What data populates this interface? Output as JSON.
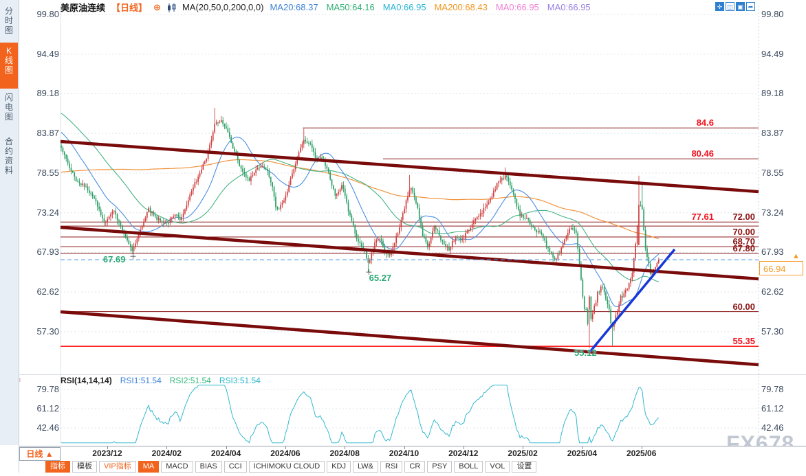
{
  "header": {
    "symbol": "美原油连续",
    "period_tag": "【日线】",
    "plus_icon": "⊕",
    "ma_settings": "MA(20,50,0,200,0,0)",
    "ma_values": [
      {
        "label": "MA20:68.37",
        "color": "#3d82d8"
      },
      {
        "label": "MA50:64.16",
        "color": "#2fae74"
      },
      {
        "label": "MA0:66.95",
        "color": "#29b3d4"
      },
      {
        "label": "MA200:68.43",
        "color": "#f0961e"
      },
      {
        "label": "MA0:66.95",
        "color": "#ef7fd4"
      },
      {
        "label": "MA0:66.95",
        "color": "#9a7fe0"
      }
    ],
    "icons": [
      "pan-crosshair-icon",
      "zoom-scale-icon",
      "kline-scale-icon",
      "exit-right-icon"
    ],
    "icon_glyphs": [
      "✛",
      "◫",
      "▣",
      "➦"
    ]
  },
  "sidebar": {
    "tabs": [
      {
        "label": "分时图",
        "active": false
      },
      {
        "label": "K线图",
        "active": true
      },
      {
        "label": "闪电图",
        "active": false
      },
      {
        "label": "合约资料",
        "active": false
      }
    ]
  },
  "rsi_panel": {
    "title": "RSI(14,14,14)",
    "values": [
      {
        "label": "RSI1:51.54",
        "color": "#3d82d8"
      },
      {
        "label": "RSI2:51.54",
        "color": "#35b87c"
      },
      {
        "label": "RSI3:51.54",
        "color": "#2ab5c9"
      }
    ]
  },
  "xaxis": {
    "period_label": "日线 ▲",
    "dates": [
      "2023/12",
      "2024/02",
      "2024/04",
      "2024/06",
      "2024/08",
      "2024/10",
      "2024/12",
      "2025/02",
      "2025/04",
      "2025/06"
    ]
  },
  "toolbar": {
    "items": [
      {
        "label": "指标",
        "state": "on"
      },
      {
        "label": "模板",
        "state": ""
      },
      {
        "label": "VIP指标",
        "state": "vip"
      },
      {
        "label": "MA",
        "state": "on"
      },
      {
        "label": "MACD",
        "state": ""
      },
      {
        "label": "BIAS",
        "state": ""
      },
      {
        "label": "CCI",
        "state": ""
      },
      {
        "label": "ICHIMOKU CLOUD",
        "state": ""
      },
      {
        "label": "KDJ",
        "state": ""
      },
      {
        "label": "LW&",
        "state": ""
      },
      {
        "label": "RSI",
        "state": ""
      },
      {
        "label": "CR",
        "state": ""
      },
      {
        "label": "PSY",
        "state": ""
      },
      {
        "label": "BOLL",
        "state": ""
      },
      {
        "label": "VOL",
        "state": ""
      },
      {
        "label": "设置",
        "state": ""
      }
    ]
  },
  "watermark": "FX678",
  "chart_data": {
    "type": "candlestick",
    "title": "美原油连续 日线 (US Crude Oil Continuous, Daily)",
    "x_window": "2023/11 - 2025/07",
    "y_axis_ticks": [
      99.8,
      94.49,
      89.18,
      83.87,
      78.55,
      73.24,
      67.93,
      62.62,
      57.3
    ],
    "rsi_axis_ticks": [
      79.78,
      61.12,
      42.46
    ],
    "last_price": 66.94,
    "colors": {
      "up": "#d04040",
      "down": "#2d9e66",
      "ma20": "#4a8fe2",
      "ma50": "#46b383",
      "ma200": "#f0923c",
      "channel": "#7a0b0b",
      "level": "#8b1a1a",
      "alert_line": "#ff2222",
      "blue_trend": "#1638d8",
      "last_dash": "#4f9be8",
      "rsi_line": "#35b8cf",
      "grid": "#dfe3ec"
    },
    "close_path": [
      [
        0,
        82.0
      ],
      [
        0.012,
        79.5
      ],
      [
        0.024,
        77.2
      ],
      [
        0.037,
        76.8
      ],
      [
        0.051,
        74.5
      ],
      [
        0.063,
        72.0
      ],
      [
        0.076,
        73.5
      ],
      [
        0.089,
        70.8
      ],
      [
        0.103,
        68.2
      ],
      [
        0.115,
        71.0
      ],
      [
        0.125,
        73.8
      ],
      [
        0.138,
        72.5
      ],
      [
        0.152,
        71.8
      ],
      [
        0.166,
        73.0
      ],
      [
        0.171,
        72.2
      ],
      [
        0.185,
        75.5
      ],
      [
        0.199,
        78.5
      ],
      [
        0.211,
        81.0
      ],
      [
        0.221,
        85.0
      ],
      [
        0.231,
        85.5
      ],
      [
        0.24,
        84.0
      ],
      [
        0.248,
        81.5
      ],
      [
        0.26,
        78.8
      ],
      [
        0.27,
        77.5
      ],
      [
        0.28,
        79.0
      ],
      [
        0.293,
        79.5
      ],
      [
        0.303,
        77.0
      ],
      [
        0.309,
        73.5
      ],
      [
        0.319,
        74.5
      ],
      [
        0.329,
        77.5
      ],
      [
        0.339,
        80.5
      ],
      [
        0.348,
        83.2
      ],
      [
        0.357,
        82.5
      ],
      [
        0.365,
        80.8
      ],
      [
        0.374,
        80.5
      ],
      [
        0.384,
        78.5
      ],
      [
        0.394,
        75.5
      ],
      [
        0.404,
        77.0
      ],
      [
        0.414,
        73.0
      ],
      [
        0.424,
        70.0
      ],
      [
        0.434,
        68.5
      ],
      [
        0.441,
        66.3
      ],
      [
        0.449,
        69.0
      ],
      [
        0.457,
        70.0
      ],
      [
        0.465,
        68.0
      ],
      [
        0.473,
        67.5
      ],
      [
        0.483,
        70.5
      ],
      [
        0.493,
        74.0
      ],
      [
        0.501,
        76.8
      ],
      [
        0.51,
        74.5
      ],
      [
        0.518,
        70.5
      ],
      [
        0.526,
        68.7
      ],
      [
        0.536,
        71.5
      ],
      [
        0.546,
        69.5
      ],
      [
        0.556,
        68.3
      ],
      [
        0.566,
        70.0
      ],
      [
        0.575,
        69.5
      ],
      [
        0.585,
        71.0
      ],
      [
        0.595,
        72.5
      ],
      [
        0.605,
        73.5
      ],
      [
        0.615,
        75.0
      ],
      [
        0.625,
        77.0
      ],
      [
        0.638,
        78.3
      ],
      [
        0.648,
        76.0
      ],
      [
        0.658,
        73.0
      ],
      [
        0.668,
        72.4
      ],
      [
        0.678,
        71.0
      ],
      [
        0.688,
        70.6
      ],
      [
        0.698,
        68.5
      ],
      [
        0.707,
        66.8
      ],
      [
        0.715,
        68.0
      ],
      [
        0.723,
        69.8
      ],
      [
        0.731,
        71.2
      ],
      [
        0.739,
        70.0
      ],
      [
        0.745,
        64.5
      ],
      [
        0.751,
        60.5
      ],
      [
        0.758,
        57.8
      ],
      [
        0.764,
        60.2
      ],
      [
        0.77,
        62.5
      ],
      [
        0.778,
        63.2
      ],
      [
        0.784,
        61.0
      ],
      [
        0.79,
        58.2
      ],
      [
        0.796,
        59.5
      ],
      [
        0.802,
        61.5
      ],
      [
        0.81,
        62.8
      ],
      [
        0.818,
        64.5
      ],
      [
        0.824,
        69.0
      ],
      [
        0.829,
        74.5
      ],
      [
        0.834,
        73.5
      ],
      [
        0.837,
        69.0
      ],
      [
        0.842,
        66.5
      ],
      [
        0.846,
        64.8
      ],
      [
        0.85,
        65.5
      ],
      [
        0.854,
        66.2
      ],
      [
        0.857,
        66.94
      ]
    ],
    "pre_path": [
      [
        -1,
        76
      ],
      [
        -0.8,
        70.5
      ],
      [
        -0.6,
        71
      ],
      [
        -0.4,
        82
      ],
      [
        -0.25,
        90
      ],
      [
        -0.15,
        88
      ],
      [
        -0.05,
        84
      ],
      [
        0,
        82.5
      ]
    ],
    "special_candles": [
      {
        "u": 0.1034,
        "lo": 67.69
      },
      {
        "u": 0.4414,
        "lo": 65.27
      },
      {
        "u": 0.7576,
        "lo": 55.12,
        "o": 60.3,
        "c": 62.0
      },
      {
        "u": 0.7901,
        "lo": 55.4
      },
      {
        "u": 0.8286,
        "hi": 78.2,
        "o": 68.9,
        "c": 74.3
      },
      {
        "u": 0.8335,
        "hi": 77.0
      },
      {
        "u": 0.221,
        "hi": 87.3
      },
      {
        "u": 0.348,
        "hi": 84.5
      },
      {
        "u": 0.501,
        "hi": 78.3
      },
      {
        "u": 0.638,
        "hi": 79.3
      },
      {
        "u": 0.8571,
        "c": 66.94
      }
    ],
    "levels": [
      {
        "price": 84.6,
        "label": "84.6",
        "cls": "lab-red",
        "from": 0.347,
        "line": "level"
      },
      {
        "price": 80.46,
        "label": "80.46",
        "cls": "lab-red",
        "from": 0.462,
        "line": "level"
      },
      {
        "price": 72.0,
        "label": "77.61",
        "cls": "lab-red",
        "from": 0,
        "line": "none"
      },
      {
        "price": 72.0,
        "label": "72.00",
        "cls": "lab-maroon",
        "from": 0,
        "line": "level"
      },
      {
        "price": 71.45,
        "label": "",
        "cls": "lab-maroon",
        "from": 0,
        "line": "level"
      },
      {
        "price": 70.0,
        "label": "70.00",
        "cls": "lab-maroon",
        "from": 0,
        "line": "level"
      },
      {
        "price": 68.7,
        "label": "68.70",
        "cls": "lab-maroon",
        "from": 0,
        "line": "level"
      },
      {
        "price": 67.8,
        "label": "67.80",
        "cls": "lab-maroon",
        "from": 0,
        "line": "level"
      },
      {
        "price": 60.0,
        "label": "60.00",
        "cls": "lab-maroon",
        "from": 0,
        "line": "level"
      },
      {
        "price": 55.35,
        "label": "55.35",
        "cls": "lab-red2",
        "from": 0,
        "line": "alert"
      }
    ],
    "trendlines": [
      {
        "u1": 0,
        "p1": 82.78,
        "u2": 1,
        "p2": 76.06,
        "kind": "channel"
      },
      {
        "u1": 0,
        "p1": 71.28,
        "u2": 1,
        "p2": 64.38,
        "kind": "channel"
      },
      {
        "u1": 0,
        "p1": 59.97,
        "u2": 1,
        "p2": 52.88,
        "kind": "channel"
      },
      {
        "u1": 0.7586,
        "p1": 54.63,
        "u2": 0.8798,
        "p2": 68.34,
        "kind": "blue"
      }
    ],
    "annotations": [
      {
        "text": "67.69",
        "x_u": 0.061,
        "y_price": 67.05,
        "marker_u": 0.1034,
        "marker_p": 67.4
      },
      {
        "text": "65.27",
        "x_u": 0.442,
        "y_price": 64.55,
        "marker_u": 0.4414,
        "marker_p": 65.27
      },
      {
        "text": "55.12",
        "x_u": 0.736,
        "y_price": 54.55,
        "marker_u": null,
        "marker_p": null
      }
    ],
    "ma_settings": "MA(20,50,0,200,0,0)",
    "ma_current": {
      "MA20": 68.37,
      "MA50": 64.16,
      "MA200": 68.43,
      "MA0": 66.95
    },
    "rsi": {
      "settings": "RSI(14,14,14)",
      "RSI1": 51.54,
      "RSI2": 51.54,
      "RSI3": 51.54
    }
  }
}
